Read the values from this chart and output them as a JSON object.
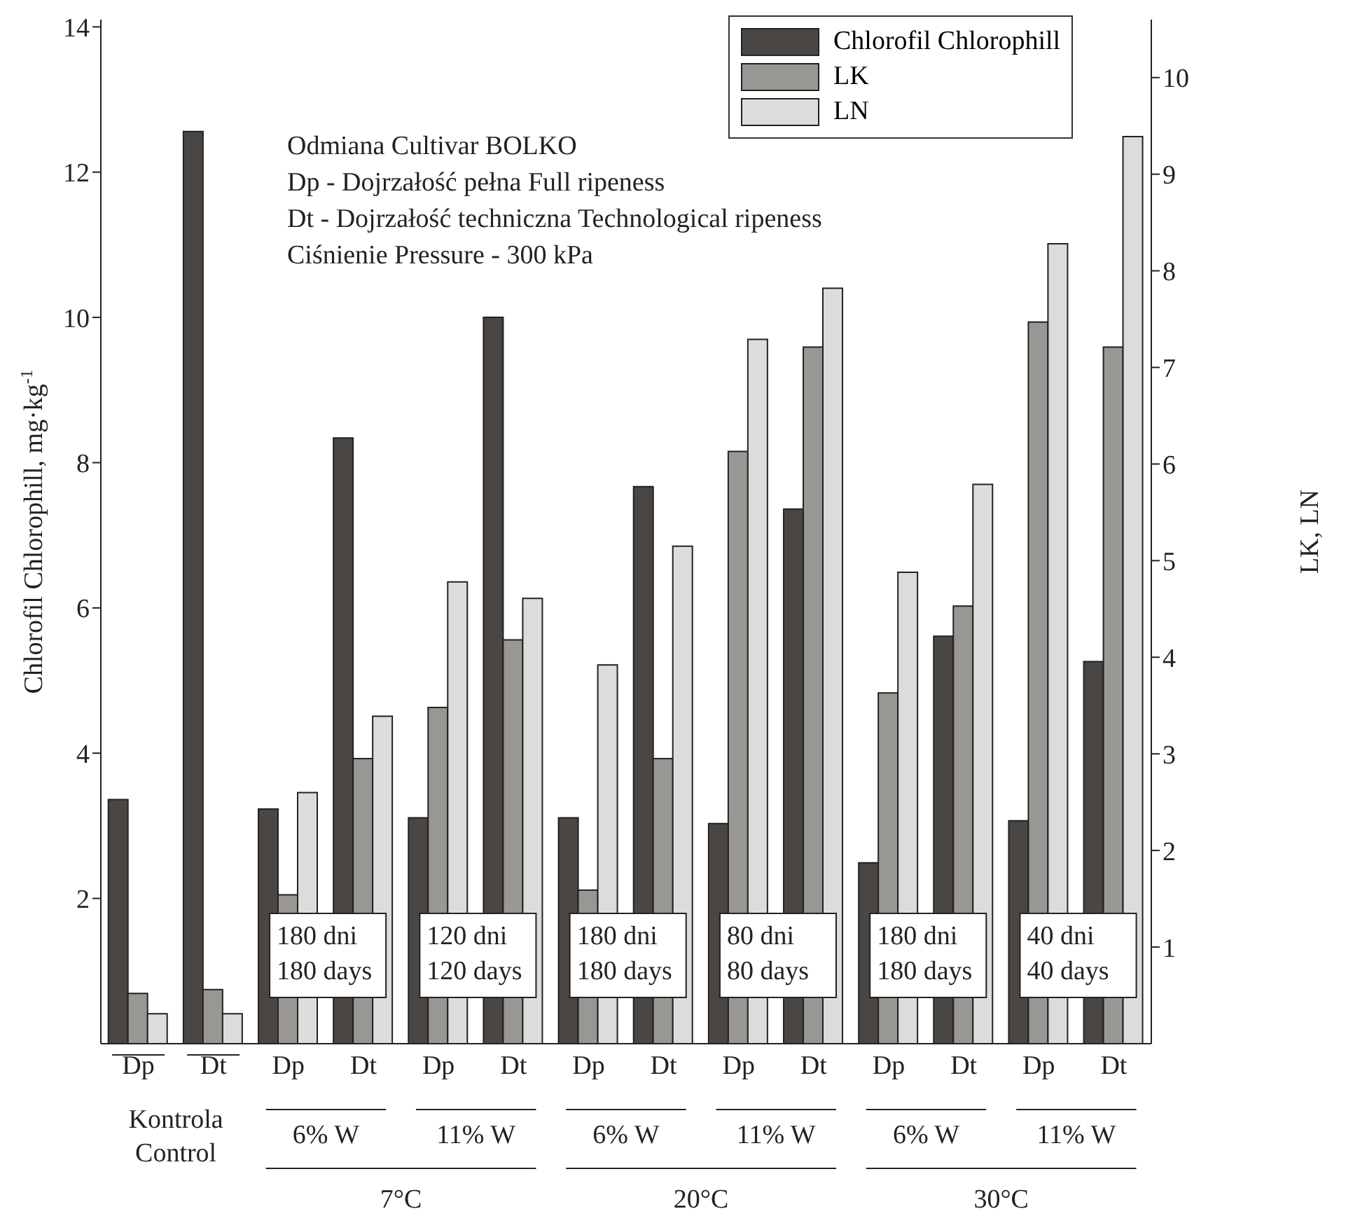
{
  "chart_data": {
    "type": "bar",
    "categories": [
      "Dp",
      "Dt",
      "Dp",
      "Dt",
      "Dp",
      "Dt",
      "Dp",
      "Dt",
      "Dp",
      "Dt",
      "Dp",
      "Dt",
      "Dp",
      "Dt"
    ],
    "series": [
      {
        "name": "Chlorofil Chlorophill",
        "color": "#4a4643",
        "values": [
          3.36,
          12.56,
          3.23,
          8.34,
          3.11,
          10.0,
          3.11,
          7.67,
          3.03,
          7.36,
          2.49,
          5.61,
          3.07,
          5.26
        ]
      },
      {
        "name": "LK",
        "color": "#999794",
        "axis": "y2",
        "values": [
          0.52,
          0.56,
          1.54,
          2.95,
          3.48,
          4.18,
          1.59,
          2.95,
          6.13,
          7.21,
          3.63,
          4.53,
          7.47,
          7.21
        ]
      },
      {
        "name": "LN",
        "color": "#dcdcdc",
        "axis": "y2",
        "values": [
          0.31,
          0.31,
          2.6,
          3.39,
          4.78,
          4.61,
          3.92,
          5.15,
          7.29,
          7.82,
          4.88,
          5.79,
          8.28,
          9.39
        ]
      }
    ],
    "ylabel": "Chlorofil  Chlorophill, mg·kg$^{-1}$",
    "y2label": "LK, LN",
    "ylim": [
      0,
      14.1
    ],
    "yticks": [
      2,
      4,
      6,
      8,
      10,
      12,
      14
    ],
    "y2lim": [
      0,
      10.6
    ],
    "y2ticks": [
      1,
      2,
      3,
      4,
      5,
      6,
      7,
      8,
      9,
      10
    ],
    "legend": "top right",
    "annotations": [
      "Odmiana Cultivar BOLKO",
      "Dp - Dojrzałość pełna Full ripeness",
      "Dt - Dojrzałość techniczna Technological ripeness",
      "Ciśnienie Pressure - 300 kPa",
      "180 dni\n180 days",
      "120 dni\n120 days",
      "180 dni\n180 days",
      "80 dni\n80 days",
      "180 dni\n180 days",
      "40 dni\n40 days",
      "Kontrola\nControl",
      "6% W",
      "11% W",
      "6% W",
      "11% W",
      "6% W",
      "11% W",
      "7°C",
      "20°C",
      "30°C"
    ]
  }
}
